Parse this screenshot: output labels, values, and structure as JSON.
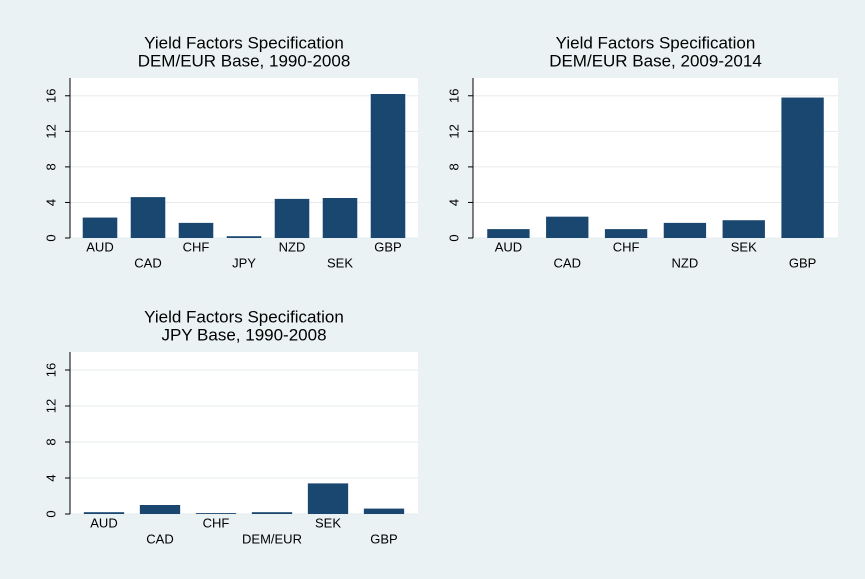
{
  "chart_data": [
    {
      "type": "bar",
      "title": "Yield Factors Specification",
      "subtitle": "DEM/EUR Base, 1990-2008",
      "categories": [
        "AUD",
        "CAD",
        "CHF",
        "JPY",
        "NZD",
        "SEK",
        "GBP"
      ],
      "values": [
        2.3,
        4.6,
        1.7,
        0.2,
        4.4,
        4.5,
        16.2
      ],
      "color": "#1a476f",
      "ylim": [
        0,
        18
      ],
      "yticks": [
        0,
        4,
        8,
        12,
        16
      ],
      "grid": true
    },
    {
      "type": "bar",
      "title": "Yield Factors Specification",
      "subtitle": "DEM/EUR Base, 2009-2014",
      "categories": [
        "AUD",
        "CAD",
        "CHF",
        "NZD",
        "SEK",
        "GBP"
      ],
      "values": [
        1.0,
        2.4,
        1.0,
        1.7,
        2.0,
        15.8
      ],
      "color": "#1a476f",
      "ylim": [
        0,
        18
      ],
      "yticks": [
        0,
        4,
        8,
        12,
        16
      ],
      "grid": true
    },
    {
      "type": "bar",
      "title": "Yield Factors Specification",
      "subtitle": "JPY Base, 1990-2008",
      "categories": [
        "AUD",
        "CAD",
        "CHF",
        "DEM/EUR",
        "SEK",
        "GBP"
      ],
      "values": [
        0.2,
        1.0,
        0.1,
        0.2,
        3.4,
        0.6
      ],
      "color": "#1a476f",
      "ylim": [
        0,
        18
      ],
      "yticks": [
        0,
        4,
        8,
        12,
        16
      ],
      "grid": true
    }
  ]
}
